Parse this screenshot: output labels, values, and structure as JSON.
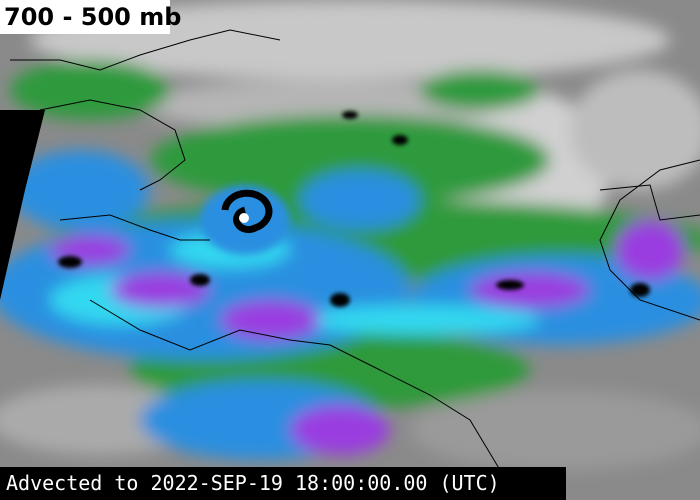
{
  "title": "700 - 500 mb",
  "caption": "Advected to 2022-SEP-19 18:00:00.00 (UTC)"
}
